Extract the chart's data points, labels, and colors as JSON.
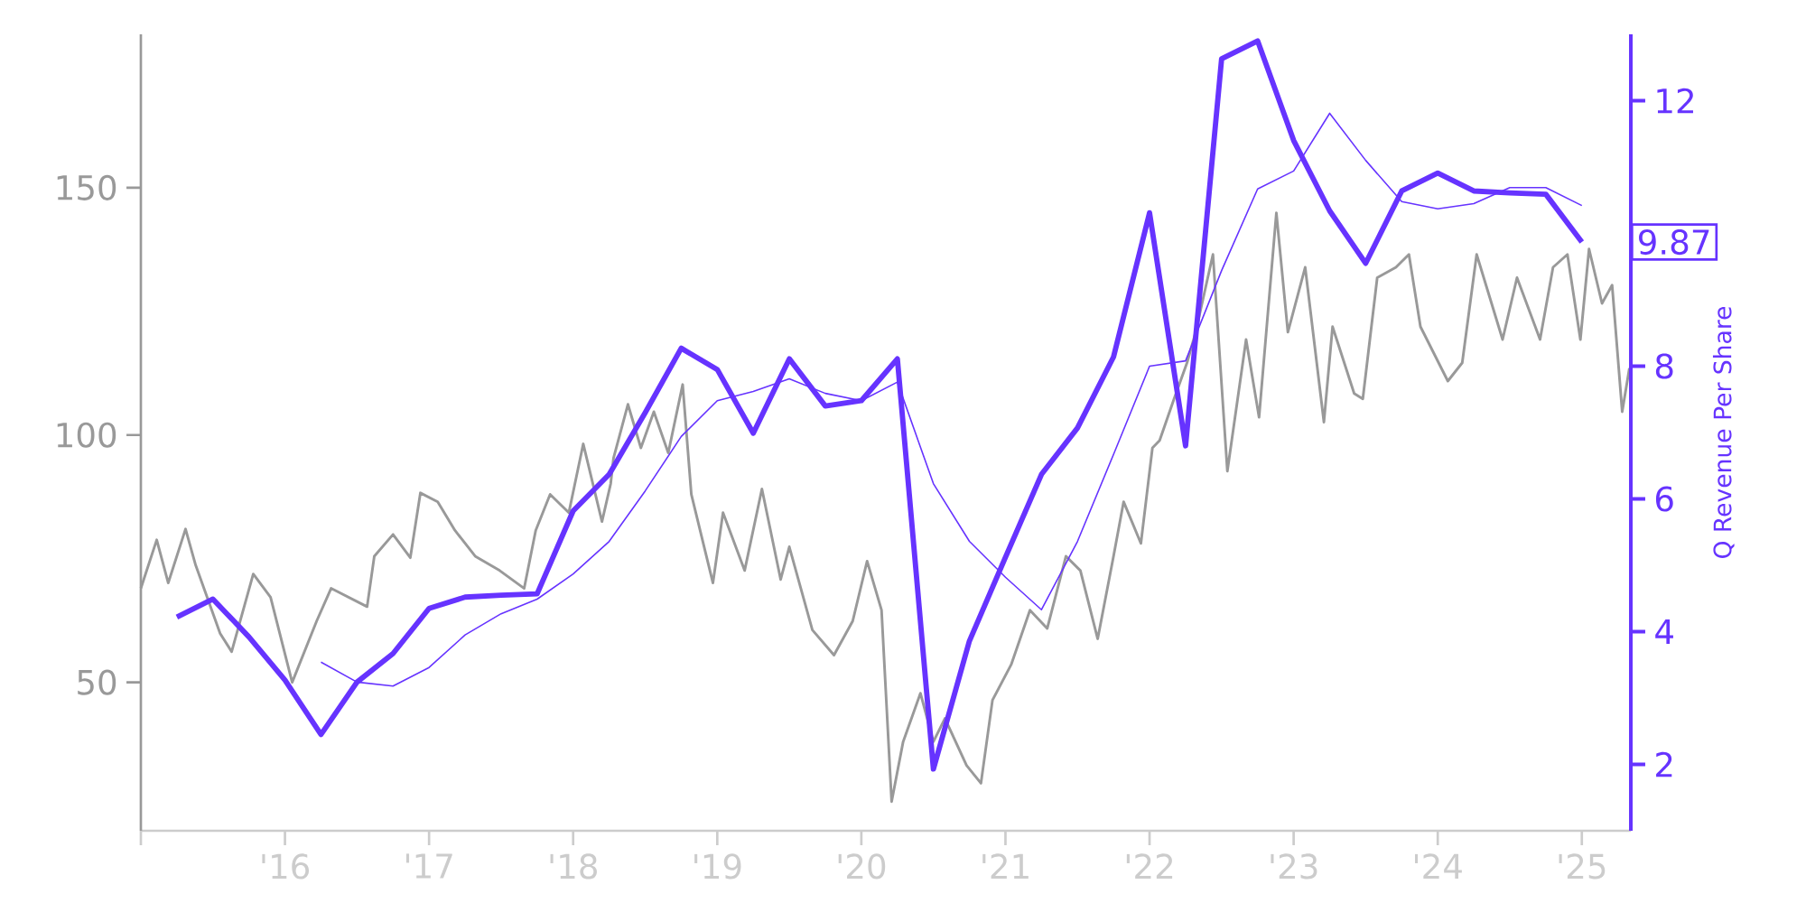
{
  "chart_data": {
    "type": "line",
    "y2label": "Q Revenue Per Share",
    "marker": "none",
    "xlim": [
      2015,
      2025.34
    ],
    "ylim": [
      20,
      181
    ],
    "y2lim": [
      1,
      13
    ],
    "xticks": [
      {
        "value": 2015,
        "label": null
      },
      {
        "value": 2016,
        "label": "'16"
      },
      {
        "value": 2017,
        "label": "'17"
      },
      {
        "value": 2018,
        "label": "'18"
      },
      {
        "value": 2019,
        "label": "'19"
      },
      {
        "value": 2020,
        "label": "'20"
      },
      {
        "value": 2021,
        "label": "'21"
      },
      {
        "value": 2022,
        "label": "'22"
      },
      {
        "value": 2023,
        "label": "'23"
      },
      {
        "value": 2024,
        "label": "'24"
      },
      {
        "value": 2025,
        "label": "'25"
      }
    ],
    "yticks": [
      50,
      100,
      150
    ],
    "y2ticks": [
      2,
      4,
      6,
      8,
      12
    ],
    "series": [
      {
        "color": "#999999",
        "x": [
          2015.0,
          2015.11,
          2015.19,
          2015.31,
          2015.38,
          2015.55,
          2015.63,
          2015.78,
          2015.9,
          2016.05,
          2016.22,
          2016.32,
          2016.57,
          2016.62,
          2016.75,
          2016.87,
          2016.94,
          2017.06,
          2017.18,
          2017.32,
          2017.49,
          2017.66,
          2017.74,
          2017.84,
          2017.97,
          2018.07,
          2018.2,
          2018.26,
          2018.28,
          2018.38,
          2018.47,
          2018.56,
          2018.66,
          2018.76,
          2018.82,
          2018.97,
          2019.04,
          2019.19,
          2019.31,
          2019.44,
          2019.5,
          2019.66,
          2019.81,
          2019.94,
          2020.04,
          2020.14,
          2020.21,
          2020.29,
          2020.41,
          2020.5,
          2020.58,
          2020.73,
          2020.83,
          2020.91,
          2021.04,
          2021.17,
          2021.29,
          2021.42,
          2021.52,
          2021.64,
          2021.75,
          2021.82,
          2021.94,
          2022.02,
          2022.07,
          2022.17,
          2022.26,
          2022.32,
          2022.44,
          2022.54,
          2022.67,
          2022.76,
          2022.88,
          2022.96,
          2023.08,
          2023.21,
          2023.27,
          2023.42,
          2023.48,
          2023.58,
          2023.71,
          2023.8,
          2023.88,
          2024.07,
          2024.17,
          2024.27,
          2024.45,
          2024.55,
          2024.71,
          2024.8,
          2024.9,
          2024.99,
          2025.05,
          2025.14,
          2025.21,
          2025.28,
          2025.33
        ],
        "values": [
          69.0,
          78.8,
          70.1,
          81.0,
          73.7,
          59.9,
          56.2,
          71.9,
          67.2,
          50.0,
          62.4,
          69.0,
          65.3,
          75.5,
          79.9,
          75.2,
          88.3,
          86.5,
          80.7,
          75.5,
          72.6,
          69.0,
          80.7,
          88.0,
          84.3,
          98.2,
          82.5,
          90.1,
          95.3,
          106.2,
          97.4,
          104.7,
          96.4,
          110.2,
          88.0,
          70.1,
          84.3,
          72.6,
          89.1,
          70.8,
          77.4,
          60.6,
          55.5,
          62.4,
          74.5,
          64.6,
          25.9,
          38.0,
          47.8,
          38.0,
          42.7,
          33.2,
          29.6,
          46.4,
          53.6,
          64.6,
          60.9,
          75.5,
          72.6,
          58.8,
          75.5,
          86.5,
          78.1,
          97.4,
          98.9,
          107.3,
          114.6,
          120.8,
          136.5,
          92.7,
          119.3,
          103.6,
          144.9,
          120.8,
          133.9,
          102.6,
          121.9,
          108.4,
          107.3,
          131.8,
          133.9,
          136.5,
          121.9,
          110.9,
          114.6,
          136.5,
          119.3,
          131.8,
          119.3,
          133.9,
          136.5,
          119.3,
          137.6,
          126.6,
          130.3,
          104.7,
          113.5
        ]
      },
      {
        "color": "#6633ff",
        "axis": "y2",
        "x": [
          2015.25,
          2015.5,
          2015.75,
          2016.0,
          2016.25,
          2016.5,
          2016.75,
          2017.0,
          2017.25,
          2017.5,
          2017.75,
          2018.0,
          2018.25,
          2018.5,
          2018.75,
          2019.0,
          2019.25,
          2019.5,
          2019.75,
          2020.0,
          2020.25,
          2020.5,
          2020.75,
          2021.0,
          2021.25,
          2021.5,
          2021.75,
          2022.0,
          2022.25,
          2022.5,
          2022.75,
          2023.0,
          2023.25,
          2023.5,
          2023.75,
          2024.0,
          2024.25,
          2024.5,
          2024.75,
          2025.0
        ],
        "values": [
          4.22,
          4.49,
          3.92,
          3.27,
          2.45,
          3.24,
          3.67,
          4.35,
          4.52,
          4.55,
          4.57,
          5.82,
          6.37,
          7.3,
          8.27,
          7.95,
          6.99,
          8.11,
          7.4,
          7.48,
          8.11,
          1.93,
          3.86,
          5.12,
          6.37,
          7.07,
          8.14,
          10.31,
          6.8,
          12.63,
          12.9,
          11.4,
          10.34,
          9.55,
          10.64,
          10.91,
          10.64,
          10.61,
          10.59,
          9.87
        ]
      },
      {
        "color": "#6633ff",
        "axis": "y2",
        "x": [
          2016.25,
          2016.5,
          2016.75,
          2017.0,
          2017.25,
          2017.5,
          2017.75,
          2018.0,
          2018.25,
          2018.5,
          2018.75,
          2019.0,
          2019.25,
          2019.5,
          2019.75,
          2020.0,
          2020.25,
          2020.5,
          2020.75,
          2021.0,
          2021.25,
          2021.5,
          2021.75,
          2022.0,
          2022.25,
          2022.5,
          2022.75,
          2023.0,
          2023.25,
          2023.5,
          2023.75,
          2024.0,
          2024.25,
          2024.5,
          2024.75,
          2025.0
        ],
        "values": [
          3.54,
          3.24,
          3.18,
          3.46,
          3.95,
          4.27,
          4.49,
          4.87,
          5.36,
          6.12,
          6.94,
          7.48,
          7.62,
          7.81,
          7.59,
          7.48,
          7.76,
          6.23,
          5.36,
          4.82,
          4.33,
          5.36,
          6.67,
          8.0,
          8.08,
          9.44,
          10.67,
          10.94,
          11.81,
          11.1,
          10.48,
          10.37,
          10.45,
          10.69,
          10.69,
          10.42
        ]
      }
    ],
    "annotations": [
      "9.87"
    ]
  }
}
